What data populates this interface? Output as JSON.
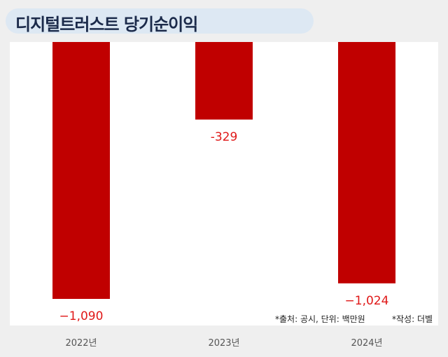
{
  "title": "디지털트러스트 당기순이익",
  "source_note": "*출처: 공시, 단위: 백만원",
  "author_note": "*작성: 더벨",
  "colors": {
    "bar": "#c00000",
    "label": "#e01818",
    "background": "#efefef",
    "plot_bg": "#ffffff",
    "title_bg": "#dde8f3"
  },
  "chart_data": {
    "type": "bar",
    "title": "디지털트러스트 당기순이익",
    "categories": [
      "2022년",
      "2023년",
      "2024년"
    ],
    "values": [
      -1090,
      -329,
      -1024
    ],
    "data_labels": [
      "−1,090",
      "-329",
      "−1,024"
    ],
    "ylim": [
      -1100,
      0
    ],
    "grid": false,
    "legend": "none"
  }
}
